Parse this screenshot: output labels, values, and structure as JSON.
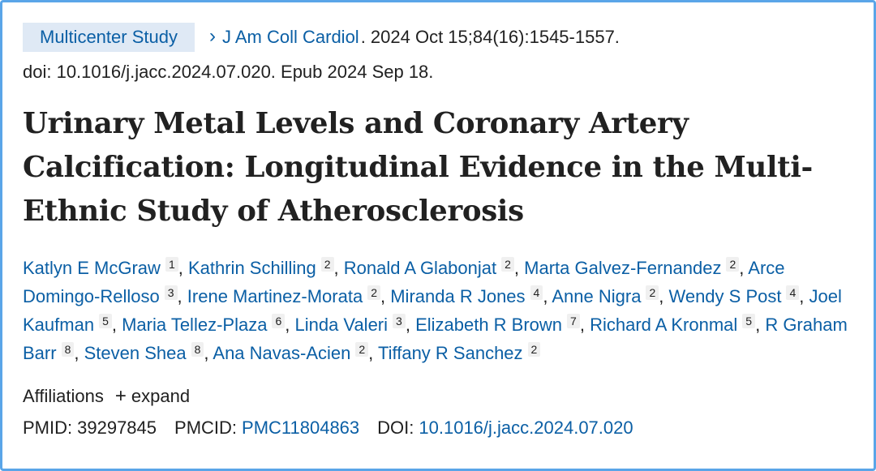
{
  "badge": "Multicenter Study",
  "citation": {
    "journal": "J Am Coll Cardiol",
    "details": ". 2024 Oct 15;84(16):1545-1557.",
    "doi_line": "doi: 10.1016/j.jacc.2024.07.020. Epub 2024 Sep 18."
  },
  "title": "Urinary Metal Levels and Coronary Artery Calcification: Longitudinal Evidence in the Multi-Ethnic Study of Atherosclerosis",
  "authors": [
    {
      "name": "Katlyn E McGraw",
      "aff": "1"
    },
    {
      "name": "Kathrin Schilling",
      "aff": "2"
    },
    {
      "name": "Ronald A Glabonjat",
      "aff": "2"
    },
    {
      "name": "Marta Galvez-Fernandez",
      "aff": "2"
    },
    {
      "name": "Arce Domingo-Relloso",
      "aff": "3"
    },
    {
      "name": "Irene Martinez-Morata",
      "aff": "2"
    },
    {
      "name": "Miranda R Jones",
      "aff": "4"
    },
    {
      "name": "Anne Nigra",
      "aff": "2"
    },
    {
      "name": "Wendy S Post",
      "aff": "4"
    },
    {
      "name": "Joel Kaufman",
      "aff": "5"
    },
    {
      "name": "Maria Tellez-Plaza",
      "aff": "6"
    },
    {
      "name": "Linda Valeri",
      "aff": "3"
    },
    {
      "name": "Elizabeth R Brown",
      "aff": "7"
    },
    {
      "name": "Richard A Kronmal",
      "aff": "5"
    },
    {
      "name": "R Graham Barr",
      "aff": "8"
    },
    {
      "name": "Steven Shea",
      "aff": "8"
    },
    {
      "name": "Ana Navas-Acien",
      "aff": "2"
    },
    {
      "name": "Tiffany R Sanchez",
      "aff": "2"
    }
  ],
  "affiliations": {
    "label": "Affiliations",
    "expand_label": "expand"
  },
  "ids": {
    "pmid_label": "PMID:",
    "pmid": "39297845",
    "pmcid_label": "PMCID:",
    "pmcid": "PMC11804863",
    "doi_label": "DOI:",
    "doi": "10.1016/j.jacc.2024.07.020"
  },
  "colors": {
    "link": "#0b5fa5",
    "badge_bg": "#dfe9f5",
    "frame": "#5aa5e8"
  }
}
